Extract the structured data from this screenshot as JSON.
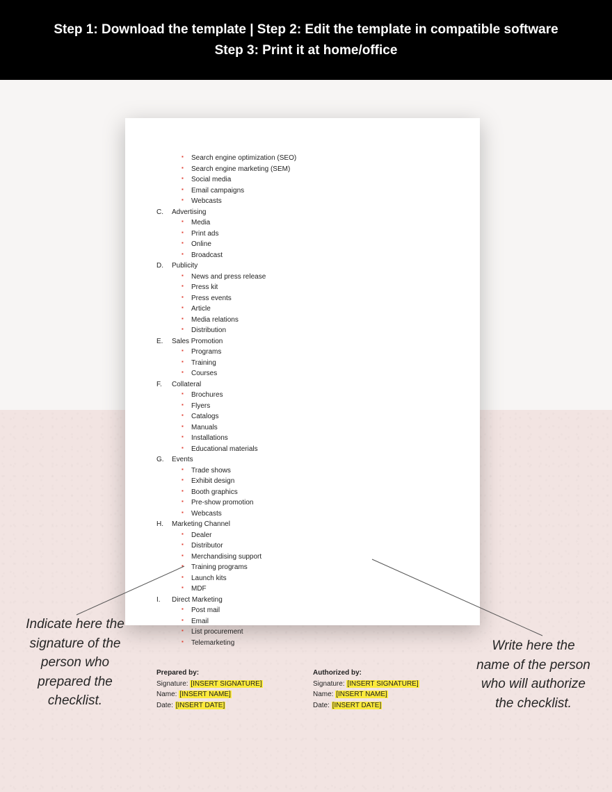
{
  "header": {
    "line1": "Step 1: Download the template | Step 2: Edit the template in compatible software",
    "line2": "Step 3: Print it at home/office"
  },
  "top_bullets": [
    "Search engine optimization (SEO)",
    "Search engine marketing (SEM)",
    "Social media",
    "Email campaigns",
    "Webcasts"
  ],
  "sections": [
    {
      "letter": "C.",
      "title": "Advertising",
      "items": [
        "Media",
        "Print ads",
        "Online",
        "Broadcast"
      ]
    },
    {
      "letter": "D.",
      "title": "Publicity",
      "items": [
        "News and press release",
        "Press kit",
        "Press events",
        "Article",
        "Media relations",
        "Distribution"
      ]
    },
    {
      "letter": "E.",
      "title": "Sales Promotion",
      "items": [
        "Programs",
        "Training",
        "Courses"
      ]
    },
    {
      "letter": "F.",
      "title": "Collateral",
      "items": [
        "Brochures",
        "Flyers",
        "Catalogs",
        "Manuals",
        "Installations",
        "Educational materials"
      ]
    },
    {
      "letter": "G.",
      "title": "Events",
      "items": [
        "Trade shows",
        "Exhibit design",
        "Booth graphics",
        "Pre-show promotion",
        "Webcasts"
      ]
    },
    {
      "letter": "H.",
      "title": "Marketing Channel",
      "items": [
        "Dealer",
        "Distributor",
        "Merchandising support",
        "Training programs",
        "Launch kits",
        "MDF"
      ]
    },
    {
      "letter": "I.",
      "title": "Direct Marketing",
      "items": [
        "Post mail",
        "Email",
        "List procurement",
        "Telemarketing"
      ]
    }
  ],
  "sig": {
    "prepared": {
      "heading": "Prepared by:",
      "sig_label": "Signature: ",
      "sig_val": "[INSERT SIGNATURE]",
      "name_label": "Name: ",
      "name_val": "[INSERT NAME]",
      "date_label": "Date: ",
      "date_val": "[INSERT DATE]"
    },
    "authorized": {
      "heading": "Authorized by:",
      "sig_label": "Signature: ",
      "sig_val": "[INSERT SIGNATURE]",
      "name_label": "Name: ",
      "name_val": "[INSERT NAME]",
      "date_label": "Date: ",
      "date_val": "[INSERT DATE]"
    }
  },
  "callouts": {
    "left": "Indicate here the signature of the person who prepared the checklist.",
    "right": "Write here the name of the person who will authorize the checklist."
  },
  "colors": {
    "bullet": "#e03b2e",
    "highlight": "#fcea3b",
    "header_bg": "#000000",
    "header_text": "#ffffff",
    "bg_bottom": "#f2e4e2"
  }
}
